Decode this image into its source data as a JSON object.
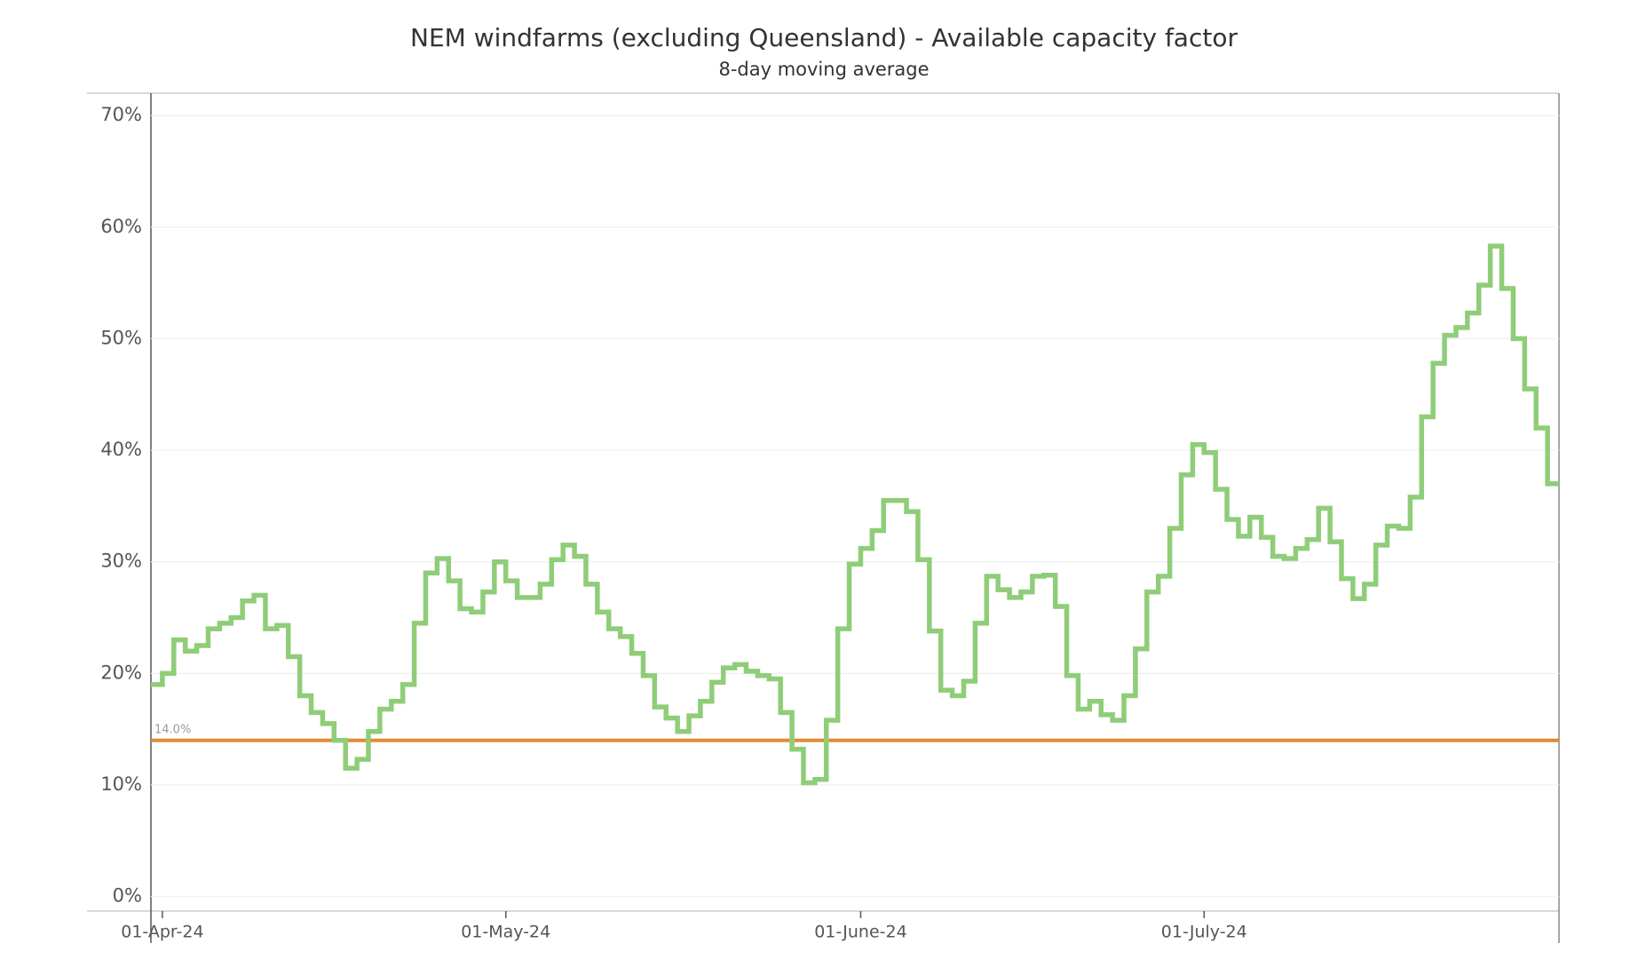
{
  "chart_data": {
    "type": "step",
    "title": "NEM windfarms (excluding Queensland) - Available capacity factor",
    "subtitle": "8-day moving average",
    "color": "#8fcd78",
    "x": [
      "2024-03-31",
      "2024-04-01",
      "2024-04-02",
      "2024-04-03",
      "2024-04-04",
      "2024-04-05",
      "2024-04-06",
      "2024-04-07",
      "2024-04-08",
      "2024-04-09",
      "2024-04-10",
      "2024-04-11",
      "2024-04-12",
      "2024-04-13",
      "2024-04-14",
      "2024-04-15",
      "2024-04-16",
      "2024-04-17",
      "2024-04-18",
      "2024-04-19",
      "2024-04-20",
      "2024-04-21",
      "2024-04-22",
      "2024-04-23",
      "2024-04-24",
      "2024-04-25",
      "2024-04-26",
      "2024-04-27",
      "2024-04-28",
      "2024-04-29",
      "2024-04-30",
      "2024-05-01",
      "2024-05-02",
      "2024-05-03",
      "2024-05-04",
      "2024-05-05",
      "2024-05-06",
      "2024-05-07",
      "2024-05-08",
      "2024-05-09",
      "2024-05-10",
      "2024-05-11",
      "2024-05-12",
      "2024-05-13",
      "2024-05-14",
      "2024-05-15",
      "2024-05-16",
      "2024-05-17",
      "2024-05-18",
      "2024-05-19",
      "2024-05-20",
      "2024-05-21",
      "2024-05-22",
      "2024-05-23",
      "2024-05-24",
      "2024-05-25",
      "2024-05-26",
      "2024-05-27",
      "2024-05-28",
      "2024-05-29",
      "2024-05-30",
      "2024-05-31",
      "2024-06-01",
      "2024-06-02",
      "2024-06-03",
      "2024-06-04",
      "2024-06-05",
      "2024-06-06",
      "2024-06-07",
      "2024-06-08",
      "2024-06-09",
      "2024-06-10",
      "2024-06-11",
      "2024-06-12",
      "2024-06-13",
      "2024-06-14",
      "2024-06-15",
      "2024-06-16",
      "2024-06-17",
      "2024-06-18",
      "2024-06-19",
      "2024-06-20",
      "2024-06-21",
      "2024-06-22",
      "2024-06-23",
      "2024-06-24",
      "2024-06-25",
      "2024-06-26",
      "2024-06-27",
      "2024-06-28",
      "2024-06-29",
      "2024-06-30",
      "2024-07-01",
      "2024-07-02",
      "2024-07-03",
      "2024-07-04",
      "2024-07-05",
      "2024-07-06",
      "2024-07-07",
      "2024-07-08",
      "2024-07-09",
      "2024-07-10",
      "2024-07-11",
      "2024-07-12",
      "2024-07-13",
      "2024-07-14",
      "2024-07-15",
      "2024-07-16",
      "2024-07-17",
      "2024-07-18",
      "2024-07-19",
      "2024-07-20",
      "2024-07-21",
      "2024-07-22",
      "2024-07-23",
      "2024-07-24",
      "2024-07-25",
      "2024-07-26",
      "2024-07-27",
      "2024-07-28",
      "2024-07-29",
      "2024-07-30",
      "2024-07-31"
    ],
    "values": [
      19,
      20,
      23,
      22,
      22.5,
      24,
      24.5,
      25,
      26.5,
      27,
      24,
      24.3,
      21.5,
      18,
      16.5,
      15.5,
      14,
      11.5,
      12.3,
      14.8,
      16.8,
      17.5,
      19,
      24.5,
      29,
      30.3,
      28.3,
      25.8,
      25.5,
      27.3,
      30,
      28.3,
      26.8,
      26.8,
      28,
      30.2,
      31.5,
      30.5,
      28,
      25.5,
      24,
      23.3,
      21.8,
      19.8,
      17,
      16,
      14.8,
      16.2,
      17.5,
      19.2,
      20.5,
      20.8,
      20.2,
      19.8,
      19.5,
      16.5,
      13.2,
      10.2,
      10.5,
      15.8,
      24,
      29.8,
      31.2,
      32.8,
      35.5,
      35.5,
      34.5,
      30.2,
      23.8,
      18.5,
      18,
      19.3,
      24.5,
      28.7,
      27.5,
      26.8,
      27.3,
      28.7,
      28.8,
      26,
      19.8,
      16.8,
      17.5,
      16.3,
      15.8,
      18,
      22.2,
      27.3,
      28.7,
      33,
      37.8,
      40.5,
      39.8,
      36.5,
      33.8,
      32.3,
      34,
      32.2,
      30.5,
      30.3,
      31.2,
      32,
      34.8,
      31.8,
      28.5,
      26.7,
      28,
      31.5,
      33.2,
      33,
      35.8,
      43,
      47.8,
      50.3,
      51,
      52.3,
      54.8,
      58.3,
      54.5,
      50,
      45.5,
      42,
      37
    ],
    "xlim": [
      "2024-03-31",
      "2024-07-31"
    ],
    "xticks": [
      {
        "value": "2024-04-01",
        "label": "01-Apr-24"
      },
      {
        "value": "2024-05-01",
        "label": "01-May-24"
      },
      {
        "value": "2024-06-01",
        "label": "01-June-24"
      },
      {
        "value": "2024-07-01",
        "label": "01-July-24"
      }
    ],
    "ylim": [
      -1.3,
      72
    ],
    "yticks": [
      {
        "value": 0,
        "label": "0%"
      },
      {
        "value": 10,
        "label": "10%"
      },
      {
        "value": 20,
        "label": "20%"
      },
      {
        "value": 30,
        "label": "30%"
      },
      {
        "value": 40,
        "label": "40%"
      },
      {
        "value": 50,
        "label": "50%"
      },
      {
        "value": 60,
        "label": "60%"
      },
      {
        "value": 70,
        "label": "70%"
      }
    ],
    "grid": true,
    "reference_line": {
      "value": 14,
      "label": "14.0%",
      "color": "#e08a35"
    }
  }
}
